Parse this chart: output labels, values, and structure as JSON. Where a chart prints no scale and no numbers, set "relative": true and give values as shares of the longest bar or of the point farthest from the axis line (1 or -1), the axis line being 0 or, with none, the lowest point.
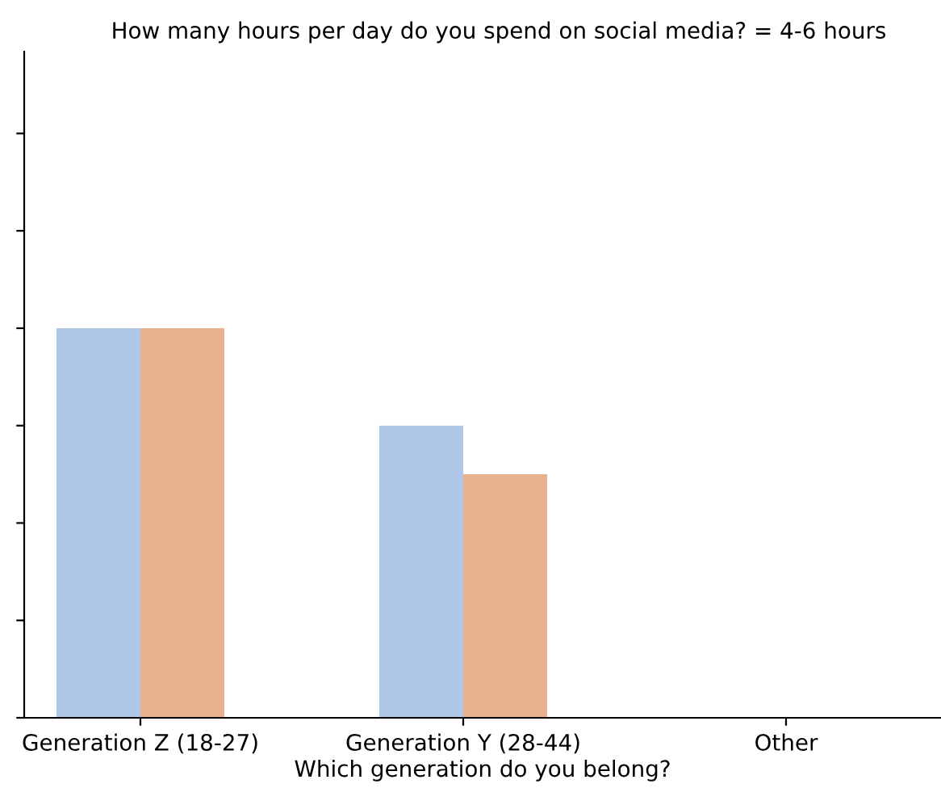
{
  "chart_data": {
    "type": "bar",
    "title": "How many hours per day do you spend on social media? = 4-6 hours",
    "xlabel": "Which generation do you belong?",
    "categories": [
      "Generation Z (18-27)",
      "Generation Y (28-44)",
      "Other"
    ],
    "relative": true,
    "tick_labels": "x",
    "grid": false,
    "legend": false,
    "series": [
      {
        "color": "#aec7e8",
        "values": [
          1,
          0.75,
          0
        ]
      },
      {
        "color": "#e8b08c",
        "values": [
          1,
          0.625,
          0
        ]
      }
    ]
  }
}
